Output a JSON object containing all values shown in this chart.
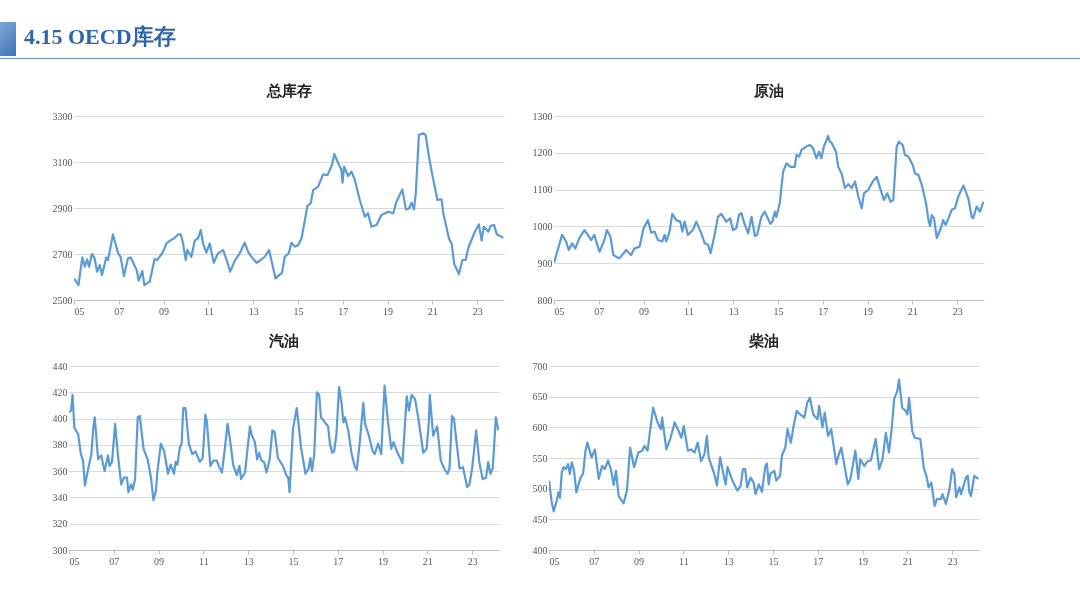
{
  "chart_data": [
    {
      "type": "line",
      "title": "总库存",
      "annotations": [
        "4.15 OECD库存"
      ],
      "color": "#5b9bd5",
      "grid": "y",
      "xlim": [
        2005,
        2024.2
      ],
      "ylim": [
        2500,
        3300
      ],
      "yticks": [
        2500,
        2700,
        2900,
        3100,
        3300
      ],
      "xticks": [
        {
          "value": 2005,
          "label": "05"
        },
        {
          "value": 2007,
          "label": "07"
        },
        {
          "value": 2009,
          "label": "09"
        },
        {
          "value": 2011,
          "label": "11"
        },
        {
          "value": 2013,
          "label": "13"
        },
        {
          "value": 2015,
          "label": "15"
        },
        {
          "value": 2017,
          "label": "17"
        },
        {
          "value": 2019,
          "label": "19"
        },
        {
          "value": 2021,
          "label": "21"
        },
        {
          "value": 2023,
          "label": "23"
        }
      ],
      "x": [
        2005.0,
        2005.2,
        2005.37,
        2005.48,
        2005.58,
        2005.67,
        2005.8,
        2005.92,
        2006.03,
        2006.15,
        2006.25,
        2006.44,
        2006.52,
        2006.74,
        2006.97,
        2007.08,
        2007.23,
        2007.41,
        2007.53,
        2007.8,
        2007.89,
        2008.05,
        2008.14,
        2008.38,
        2008.6,
        2008.72,
        2008.98,
        2009.13,
        2009.29,
        2009.47,
        2009.65,
        2009.77,
        2009.87,
        2009.99,
        2010.06,
        2010.24,
        2010.39,
        2010.54,
        2010.66,
        2010.76,
        2010.91,
        2011.06,
        2011.24,
        2011.43,
        2011.66,
        2011.84,
        2011.97,
        2012.18,
        2012.4,
        2012.62,
        2012.77,
        2012.92,
        2013.15,
        2013.34,
        2013.52,
        2013.71,
        2014.0,
        2014.29,
        2014.41,
        2014.59,
        2014.71,
        2014.86,
        2015.01,
        2015.16,
        2015.31,
        2015.42,
        2015.57,
        2015.68,
        2015.9,
        2016.12,
        2016.32,
        2016.53,
        2016.62,
        2016.8,
        2016.94,
        2016.99,
        2017.06,
        2017.24,
        2017.39,
        2017.54,
        2017.76,
        2017.99,
        2018.13,
        2018.28,
        2018.51,
        2018.73,
        2019.03,
        2019.25,
        2019.4,
        2019.66,
        2019.82,
        2019.96,
        2020.07,
        2020.18,
        2020.26,
        2020.4,
        2020.59,
        2020.7,
        2020.85,
        2021.0,
        2021.23,
        2021.41,
        2021.49,
        2021.74,
        2021.86,
        2021.98,
        2022.19,
        2022.34,
        2022.49,
        2022.6,
        2022.9,
        2023.08,
        2023.2,
        2023.3,
        2023.5,
        2023.6,
        2023.76,
        2023.87,
        2024.02,
        2024.17
      ],
      "values": [
        2594,
        2565,
        2685,
        2645,
        2677,
        2645,
        2700,
        2681,
        2623,
        2652,
        2609,
        2685,
        2674,
        2785,
        2703,
        2688,
        2604,
        2681,
        2685,
        2630,
        2584,
        2626,
        2565,
        2580,
        2678,
        2674,
        2710,
        2746,
        2758,
        2768,
        2785,
        2785,
        2746,
        2674,
        2717,
        2688,
        2758,
        2768,
        2804,
        2746,
        2706,
        2746,
        2662,
        2703,
        2717,
        2667,
        2623,
        2671,
        2703,
        2749,
        2710,
        2688,
        2662,
        2674,
        2688,
        2717,
        2594,
        2619,
        2688,
        2703,
        2749,
        2732,
        2739,
        2768,
        2848,
        2909,
        2920,
        2978,
        2993,
        3046,
        3043,
        3090,
        3135,
        3094,
        3065,
        3010,
        3080,
        3039,
        3058,
        3022,
        2935,
        2862,
        2877,
        2819,
        2826,
        2870,
        2884,
        2877,
        2927,
        2981,
        2894,
        2898,
        2923,
        2894,
        2964,
        3217,
        3225,
        3217,
        3123,
        3043,
        2935,
        2938,
        2877,
        2768,
        2746,
        2656,
        2613,
        2674,
        2674,
        2725,
        2797,
        2829,
        2758,
        2819,
        2797,
        2822,
        2826,
        2787,
        2778,
        2771
      ]
    },
    {
      "type": "line",
      "title": "原油",
      "color": "#5b9bd5",
      "grid": "y",
      "xlim": [
        2005,
        2024.2
      ],
      "ylim": [
        800,
        1300
      ],
      "yticks": [
        800,
        900,
        1000,
        1100,
        1200,
        1300
      ],
      "xticks": [
        {
          "value": 2005,
          "label": "05"
        },
        {
          "value": 2007,
          "label": "07"
        },
        {
          "value": 2009,
          "label": "09"
        },
        {
          "value": 2011,
          "label": "11"
        },
        {
          "value": 2013,
          "label": "13"
        },
        {
          "value": 2015,
          "label": "15"
        },
        {
          "value": 2017,
          "label": "17"
        },
        {
          "value": 2019,
          "label": "19"
        },
        {
          "value": 2021,
          "label": "21"
        },
        {
          "value": 2023,
          "label": "23"
        }
      ],
      "x": [
        2005.0,
        2005.21,
        2005.36,
        2005.54,
        2005.66,
        2005.81,
        2005.95,
        2006.13,
        2006.36,
        2006.51,
        2006.66,
        2006.8,
        2007.03,
        2007.25,
        2007.36,
        2007.52,
        2007.65,
        2007.92,
        2008.22,
        2008.44,
        2008.59,
        2008.82,
        2009.0,
        2009.19,
        2009.34,
        2009.49,
        2009.64,
        2009.83,
        2009.94,
        2010.01,
        2010.16,
        2010.28,
        2010.46,
        2010.64,
        2010.73,
        2010.83,
        2010.98,
        2011.2,
        2011.35,
        2011.58,
        2011.73,
        2011.88,
        2011.99,
        2012.17,
        2012.32,
        2012.47,
        2012.69,
        2012.87,
        2012.99,
        2013.14,
        2013.26,
        2013.37,
        2013.52,
        2013.67,
        2013.82,
        2013.97,
        2014.07,
        2014.26,
        2014.41,
        2014.66,
        2014.75,
        2014.86,
        2014.93,
        2015.08,
        2015.23,
        2015.38,
        2015.56,
        2015.75,
        2015.83,
        2015.95,
        2016.05,
        2016.27,
        2016.42,
        2016.57,
        2016.72,
        2016.84,
        2016.94,
        2017.05,
        2017.24,
        2017.31,
        2017.39,
        2017.59,
        2017.69,
        2017.84,
        2017.99,
        2018.14,
        2018.29,
        2018.44,
        2018.59,
        2018.74,
        2018.84,
        2019.03,
        2019.23,
        2019.41,
        2019.56,
        2019.73,
        2019.88,
        2020.03,
        2020.15,
        2020.3,
        2020.4,
        2020.57,
        2020.67,
        2020.82,
        2021.02,
        2021.12,
        2021.27,
        2021.42,
        2021.61,
        2021.72,
        2021.79,
        2021.87,
        2021.97,
        2022.09,
        2022.27,
        2022.38,
        2022.49,
        2022.61,
        2022.76,
        2022.9,
        2023.05,
        2023.28,
        2023.5,
        2023.65,
        2023.72,
        2023.87,
        2024.02,
        2024.17
      ],
      "values": [
        901,
        945,
        977,
        959,
        936,
        954,
        940,
        968,
        990,
        977,
        963,
        977,
        931,
        963,
        990,
        972,
        922,
        913,
        936,
        922,
        940,
        945,
        995,
        1017,
        983,
        986,
        963,
        959,
        977,
        959,
        986,
        1034,
        1017,
        1013,
        986,
        1013,
        977,
        990,
        1013,
        981,
        954,
        950,
        927,
        977,
        1026,
        1034,
        1013,
        1022,
        990,
        995,
        1031,
        1036,
        1004,
        981,
        1026,
        974,
        977,
        1026,
        1040,
        1007,
        1013,
        1040,
        1026,
        1063,
        1149,
        1171,
        1162,
        1162,
        1194,
        1190,
        1208,
        1217,
        1221,
        1212,
        1185,
        1203,
        1185,
        1217,
        1246,
        1230,
        1228,
        1203,
        1162,
        1144,
        1104,
        1115,
        1104,
        1122,
        1081,
        1049,
        1090,
        1099,
        1122,
        1135,
        1104,
        1072,
        1090,
        1067,
        1072,
        1217,
        1230,
        1221,
        1194,
        1190,
        1167,
        1144,
        1140,
        1113,
        1063,
        1017,
        1001,
        1031,
        1022,
        968,
        995,
        1017,
        1004,
        1022,
        1045,
        1049,
        1081,
        1111,
        1076,
        1026,
        1022,
        1054,
        1040,
        1067
      ]
    },
    {
      "type": "line",
      "title": "汽油",
      "color": "#5b9bd5",
      "grid": "y",
      "xlim": [
        2005,
        2024.2
      ],
      "ylim": [
        300,
        440
      ],
      "yticks": [
        300,
        320,
        340,
        360,
        380,
        400,
        420,
        440
      ],
      "xticks": [
        {
          "value": 2005,
          "label": "05"
        },
        {
          "value": 2007,
          "label": "07"
        },
        {
          "value": 2009,
          "label": "09"
        },
        {
          "value": 2011,
          "label": "11"
        },
        {
          "value": 2013,
          "label": "13"
        },
        {
          "value": 2015,
          "label": "15"
        },
        {
          "value": 2017,
          "label": "17"
        },
        {
          "value": 2019,
          "label": "19"
        },
        {
          "value": 2021,
          "label": "21"
        },
        {
          "value": 2023,
          "label": "23"
        }
      ],
      "x": [
        2005.0,
        2005.09,
        2005.16,
        2005.24,
        2005.41,
        2005.53,
        2005.63,
        2005.71,
        2005.86,
        2006.0,
        2006.08,
        2006.15,
        2006.3,
        2006.44,
        2006.59,
        2006.74,
        2006.81,
        2006.92,
        2007.06,
        2007.18,
        2007.33,
        2007.45,
        2007.59,
        2007.65,
        2007.77,
        2007.85,
        2007.95,
        2008.07,
        2008.16,
        2008.33,
        2008.51,
        2008.66,
        2008.77,
        2008.88,
        2008.95,
        2009.1,
        2009.25,
        2009.42,
        2009.54,
        2009.69,
        2009.76,
        2009.84,
        2009.95,
        2010.03,
        2010.1,
        2010.2,
        2010.35,
        2010.5,
        2010.65,
        2010.84,
        2010.97,
        2011.09,
        2011.16,
        2011.31,
        2011.45,
        2011.6,
        2011.71,
        2011.83,
        2011.93,
        2012.08,
        2012.19,
        2012.33,
        2012.49,
        2012.61,
        2012.68,
        2012.86,
        2013.08,
        2013.15,
        2013.3,
        2013.4,
        2013.49,
        2013.6,
        2013.71,
        2013.82,
        2013.96,
        2014.08,
        2014.18,
        2014.33,
        2014.55,
        2014.7,
        2014.79,
        2014.85,
        2015.0,
        2015.17,
        2015.36,
        2015.56,
        2015.7,
        2015.78,
        2015.85,
        2015.95,
        2016.07,
        2016.17,
        2016.25,
        2016.43,
        2016.57,
        2016.65,
        2016.75,
        2016.84,
        2016.94,
        2017.06,
        2017.17,
        2017.25,
        2017.32,
        2017.47,
        2017.62,
        2017.77,
        2017.85,
        2017.99,
        2018.14,
        2018.22,
        2018.39,
        2018.56,
        2018.65,
        2018.8,
        2018.94,
        2019.09,
        2019.24,
        2019.39,
        2019.49,
        2019.64,
        2019.79,
        2019.89,
        2020.08,
        2020.18,
        2020.3,
        2020.45,
        2020.59,
        2020.82,
        2020.97,
        2021.07,
        2021.11,
        2021.26,
        2021.44,
        2021.6,
        2021.75,
        2021.9,
        2021.99,
        2022.1,
        2022.19,
        2022.29,
        2022.44,
        2022.59,
        2022.78,
        2022.88,
        2023.0,
        2023.18,
        2023.32,
        2023.47,
        2023.62,
        2023.72,
        2023.81,
        2023.92,
        2024.06,
        2024.17
      ],
      "values": [
        405,
        406,
        418,
        393,
        388,
        373,
        368,
        349,
        362,
        373,
        392,
        401,
        369,
        372,
        360,
        372,
        364,
        367,
        396,
        373,
        350,
        355,
        355,
        344,
        350,
        346,
        354,
        401,
        402,
        377,
        369,
        355,
        338,
        345,
        360,
        381,
        375,
        358,
        365,
        358,
        367,
        365,
        378,
        381,
        408,
        408,
        381,
        373,
        375,
        367,
        370,
        403,
        397,
        364,
        368,
        368,
        363,
        359,
        373,
        396,
        384,
        365,
        357,
        364,
        354,
        359,
        394,
        388,
        382,
        369,
        374,
        368,
        367,
        359,
        369,
        391,
        390,
        370,
        364,
        357,
        355,
        344,
        392,
        408,
        378,
        358,
        362,
        370,
        360,
        373,
        420,
        418,
        401,
        397,
        394,
        381,
        374,
        375,
        388,
        424,
        412,
        397,
        401,
        391,
        373,
        363,
        361,
        383,
        412,
        396,
        387,
        375,
        373,
        381,
        373,
        425,
        398,
        377,
        382,
        375,
        370,
        366,
        417,
        406,
        418,
        415,
        401,
        374,
        377,
        398,
        418,
        387,
        394,
        368,
        362,
        358,
        362,
        402,
        400,
        384,
        362,
        363,
        348,
        350,
        362,
        391,
        367,
        354,
        355,
        367,
        358,
        362,
        401,
        391
      ]
    },
    {
      "type": "line",
      "title": "柴油",
      "color": "#5b9bd5",
      "grid": "y",
      "xlim": [
        2005,
        2024.2
      ],
      "ylim": [
        400,
        700
      ],
      "yticks": [
        400,
        450,
        500,
        550,
        600,
        650,
        700
      ],
      "xticks": [
        {
          "value": 2005,
          "label": "05"
        },
        {
          "value": 2007,
          "label": "07"
        },
        {
          "value": 2009,
          "label": "09"
        },
        {
          "value": 2011,
          "label": "11"
        },
        {
          "value": 2013,
          "label": "13"
        },
        {
          "value": 2015,
          "label": "15"
        },
        {
          "value": 2017,
          "label": "17"
        },
        {
          "value": 2019,
          "label": "19"
        },
        {
          "value": 2021,
          "label": "21"
        },
        {
          "value": 2023,
          "label": "23"
        }
      ],
      "x": [
        2005.0,
        2005.12,
        2005.21,
        2005.34,
        2005.42,
        2005.49,
        2005.57,
        2005.65,
        2005.75,
        2005.85,
        2005.93,
        2006.02,
        2006.12,
        2006.22,
        2006.41,
        2006.52,
        2006.63,
        2006.71,
        2006.9,
        2007.05,
        2007.22,
        2007.37,
        2007.49,
        2007.64,
        2007.78,
        2007.89,
        2007.99,
        2008.11,
        2008.33,
        2008.48,
        2008.62,
        2008.8,
        2008.99,
        2009.17,
        2009.26,
        2009.4,
        2009.51,
        2009.65,
        2009.85,
        2010.0,
        2010.05,
        2010.24,
        2010.43,
        2010.61,
        2010.79,
        2010.91,
        2011.02,
        2011.2,
        2011.35,
        2011.5,
        2011.64,
        2011.79,
        2011.94,
        2012.05,
        2012.13,
        2012.38,
        2012.5,
        2012.64,
        2012.82,
        2012.89,
        2012.97,
        2013.19,
        2013.41,
        2013.56,
        2013.66,
        2013.76,
        2013.85,
        2014.0,
        2014.14,
        2014.22,
        2014.37,
        2014.51,
        2014.66,
        2014.73,
        2014.81,
        2014.88,
        2015.06,
        2015.15,
        2015.32,
        2015.4,
        2015.55,
        2015.65,
        2015.8,
        2015.92,
        2016.06,
        2016.21,
        2016.4,
        2016.53,
        2016.65,
        2016.8,
        2016.99,
        2017.06,
        2017.21,
        2017.31,
        2017.46,
        2017.6,
        2017.83,
        2017.9,
        2018.05,
        2018.34,
        2018.46,
        2018.68,
        2018.81,
        2018.9,
        2019.08,
        2019.23,
        2019.37,
        2019.59,
        2019.74,
        2019.89,
        2020.04,
        2020.18,
        2020.3,
        2020.41,
        2020.55,
        2020.63,
        2020.77,
        2020.92,
        2021.0,
        2021.08,
        2021.22,
        2021.33,
        2021.58,
        2021.73,
        2021.87,
        2021.95,
        2022.07,
        2022.22,
        2022.32,
        2022.5,
        2022.57,
        2022.72,
        2022.88,
        2023.0,
        2023.1,
        2023.18,
        2023.33,
        2023.4,
        2023.62,
        2023.7,
        2023.77,
        2023.84,
        2023.99,
        2024.17
      ],
      "values": [
        513,
        478,
        463,
        480,
        494,
        485,
        526,
        535,
        532,
        540,
        524,
        543,
        529,
        494,
        518,
        524,
        562,
        575,
        551,
        564,
        516,
        537,
        532,
        546,
        529,
        506,
        529,
        488,
        476,
        497,
        567,
        535,
        559,
        562,
        570,
        562,
        594,
        632,
        608,
        597,
        616,
        564,
        583,
        608,
        594,
        583,
        602,
        562,
        564,
        559,
        575,
        545,
        556,
        586,
        551,
        524,
        505,
        551,
        518,
        507,
        535,
        513,
        497,
        505,
        532,
        532,
        502,
        518,
        510,
        491,
        507,
        495,
        537,
        541,
        507,
        524,
        529,
        513,
        521,
        554,
        567,
        597,
        575,
        602,
        627,
        621,
        616,
        640,
        648,
        621,
        613,
        635,
        600,
        624,
        586,
        597,
        540,
        551,
        567,
        507,
        516,
        562,
        516,
        548,
        537,
        545,
        546,
        581,
        532,
        548,
        591,
        559,
        597,
        646,
        659,
        678,
        632,
        627,
        621,
        648,
        594,
        583,
        581,
        535,
        518,
        502,
        510,
        472,
        483,
        483,
        491,
        475,
        499,
        532,
        524,
        486,
        502,
        491,
        518,
        521,
        494,
        488,
        521,
        516
      ]
    }
  ]
}
